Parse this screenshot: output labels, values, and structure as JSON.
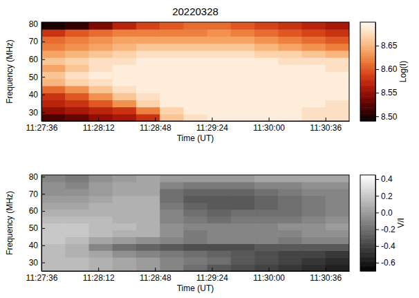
{
  "chart_data": [
    {
      "type": "heatmap",
      "title": "20220328",
      "color": "hot",
      "x_label": "Time (UT)",
      "y_label": "Frequency (MHz)",
      "xlim": [
        "11:27:36",
        "11:30:51"
      ],
      "ylim": [
        25,
        81
      ],
      "xticks": [
        "11:27:36",
        "11:28:12",
        "11:28:48",
        "11:29:24",
        "11:30:00",
        "11:30:36"
      ],
      "yticks": [
        30,
        40,
        50,
        60,
        70,
        80
      ],
      "x_bins": [
        "11:27:36",
        "11:27:51",
        "11:28:06",
        "11:28:21",
        "11:28:36",
        "11:28:51",
        "11:29:06",
        "11:29:21",
        "11:29:36",
        "11:29:51",
        "11:30:06",
        "11:30:21",
        "11:30:36",
        "11:30:51"
      ],
      "y_bins": [
        25,
        29,
        33,
        37,
        41,
        45,
        49,
        53,
        57,
        61,
        65,
        69,
        73,
        77,
        81
      ],
      "cells": [
        [
          8.52,
          8.53,
          8.55,
          8.56,
          8.58,
          8.66,
          8.68,
          8.69,
          8.69,
          8.69,
          8.69,
          8.68,
          8.68
        ],
        [
          8.55,
          8.56,
          8.57,
          8.58,
          8.62,
          8.67,
          8.69,
          8.69,
          8.69,
          8.69,
          8.69,
          8.68,
          8.68
        ],
        [
          8.57,
          8.58,
          8.6,
          8.63,
          8.67,
          8.69,
          8.69,
          8.69,
          8.69,
          8.69,
          8.69,
          8.69,
          8.68
        ],
        [
          8.58,
          8.6,
          8.63,
          8.66,
          8.68,
          8.69,
          8.69,
          8.69,
          8.69,
          8.69,
          8.69,
          8.69,
          8.69
        ],
        [
          8.61,
          8.63,
          8.66,
          8.68,
          8.69,
          8.69,
          8.69,
          8.69,
          8.69,
          8.69,
          8.69,
          8.69,
          8.69
        ],
        [
          8.65,
          8.67,
          8.68,
          8.69,
          8.69,
          8.69,
          8.69,
          8.69,
          8.69,
          8.69,
          8.69,
          8.69,
          8.69
        ],
        [
          8.66,
          8.68,
          8.69,
          8.69,
          8.69,
          8.69,
          8.69,
          8.69,
          8.69,
          8.69,
          8.69,
          8.69,
          8.69
        ],
        [
          8.64,
          8.66,
          8.68,
          8.69,
          8.69,
          8.69,
          8.69,
          8.69,
          8.69,
          8.69,
          8.69,
          8.69,
          8.68
        ],
        [
          8.66,
          8.67,
          8.68,
          8.68,
          8.69,
          8.69,
          8.69,
          8.69,
          8.69,
          8.69,
          8.68,
          8.68,
          8.68
        ],
        [
          8.64,
          8.65,
          8.66,
          8.67,
          8.68,
          8.68,
          8.68,
          8.68,
          8.68,
          8.67,
          8.67,
          8.66,
          8.65
        ],
        [
          8.62,
          8.63,
          8.64,
          8.65,
          8.66,
          8.66,
          8.66,
          8.66,
          8.66,
          8.65,
          8.64,
          8.63,
          8.62
        ],
        [
          8.61,
          8.62,
          8.63,
          8.64,
          8.64,
          8.64,
          8.64,
          8.64,
          8.64,
          8.63,
          8.62,
          8.61,
          8.6
        ],
        [
          8.58,
          8.6,
          8.61,
          8.62,
          8.62,
          8.62,
          8.62,
          8.63,
          8.62,
          8.61,
          8.6,
          8.59,
          8.58
        ],
        [
          8.5,
          8.51,
          8.54,
          8.57,
          8.59,
          8.6,
          8.61,
          8.61,
          8.6,
          8.59,
          8.58,
          8.57,
          8.56
        ]
      ],
      "colorbar_label": "Log(I)",
      "colorbar_range": [
        8.49,
        8.7
      ],
      "colorbar_ticks": [
        {
          "value": 8.5,
          "label": "8.50"
        },
        8.55,
        {
          "value": 8.6,
          "label": "8.60"
        },
        8.65
      ]
    },
    {
      "type": "heatmap",
      "color": "gray",
      "x_label": "Time (UT)",
      "y_label": "Frequency (MHz)",
      "xlim": [
        "11:27:36",
        "11:30:51"
      ],
      "ylim": [
        25,
        81
      ],
      "xticks": [
        "11:27:36",
        "11:28:12",
        "11:28:48",
        "11:29:24",
        "11:30:00",
        "11:30:36"
      ],
      "yticks": [
        30,
        40,
        50,
        60,
        70,
        80
      ],
      "x_bins": [
        "11:27:36",
        "11:27:51",
        "11:28:06",
        "11:28:21",
        "11:28:36",
        "11:28:51",
        "11:29:06",
        "11:29:21",
        "11:29:36",
        "11:29:51",
        "11:30:06",
        "11:30:21",
        "11:30:36",
        "11:30:51"
      ],
      "y_bins": [
        25,
        29,
        33,
        37,
        41,
        45,
        49,
        53,
        57,
        61,
        65,
        69,
        73,
        77,
        81
      ],
      "cells": [
        [
          0.15,
          0.15,
          0.1,
          0.05,
          0.0,
          -0.1,
          -0.2,
          -0.3,
          -0.35,
          -0.4,
          -0.45,
          -0.5,
          -0.55
        ],
        [
          0.15,
          0.15,
          0.1,
          0.05,
          0.0,
          -0.1,
          -0.15,
          -0.2,
          -0.3,
          -0.35,
          -0.4,
          -0.45,
          -0.5
        ],
        [
          0.15,
          0.1,
          0.05,
          -0.05,
          -0.1,
          -0.15,
          -0.2,
          -0.25,
          -0.3,
          -0.35,
          -0.4,
          -0.4,
          -0.45
        ],
        [
          0.15,
          0.1,
          -0.1,
          -0.2,
          -0.25,
          -0.3,
          -0.35,
          -0.35,
          -0.35,
          -0.3,
          -0.3,
          -0.3,
          -0.3
        ],
        [
          0.2,
          0.15,
          0.05,
          0.0,
          -0.05,
          -0.1,
          -0.15,
          -0.1,
          -0.1,
          -0.1,
          -0.15,
          -0.1,
          -0.1
        ],
        [
          0.2,
          0.2,
          0.15,
          0.1,
          0.1,
          -0.05,
          -0.15,
          -0.1,
          -0.1,
          -0.1,
          -0.1,
          -0.05,
          -0.05
        ],
        [
          0.2,
          0.2,
          0.15,
          0.15,
          0.1,
          -0.05,
          -0.1,
          -0.1,
          -0.1,
          -0.1,
          -0.05,
          -0.05,
          0.0
        ],
        [
          0.15,
          0.15,
          0.15,
          0.1,
          0.1,
          -0.1,
          -0.15,
          -0.2,
          -0.15,
          -0.15,
          -0.15,
          -0.1,
          -0.05
        ],
        [
          0.1,
          0.1,
          0.1,
          0.1,
          0.1,
          -0.1,
          -0.2,
          -0.25,
          -0.2,
          -0.2,
          -0.2,
          -0.15,
          -0.1
        ],
        [
          0.05,
          0.05,
          0.1,
          0.1,
          0.1,
          -0.15,
          -0.25,
          -0.3,
          -0.3,
          -0.25,
          -0.2,
          -0.15,
          -0.1
        ],
        [
          0.0,
          0.0,
          0.05,
          0.1,
          0.1,
          -0.2,
          -0.3,
          -0.3,
          -0.3,
          -0.25,
          -0.2,
          -0.15,
          -0.1
        ],
        [
          -0.05,
          -0.05,
          0.0,
          0.05,
          0.05,
          -0.2,
          -0.25,
          -0.25,
          -0.25,
          -0.2,
          -0.15,
          -0.1,
          -0.1
        ],
        [
          -0.05,
          -0.1,
          0.0,
          0.05,
          0.05,
          -0.1,
          -0.15,
          -0.15,
          -0.15,
          -0.1,
          -0.1,
          -0.05,
          -0.05
        ],
        [
          -0.1,
          -0.15,
          -0.05,
          0.0,
          0.05,
          0.0,
          0.0,
          0.0,
          0.0,
          0.05,
          0.05,
          0.05,
          0.05
        ]
      ],
      "colorbar_label": "V/I",
      "colorbar_range": [
        -0.7,
        0.45
      ],
      "colorbar_ticks": [
        -0.6,
        -0.4,
        -0.2,
        {
          "value": 0,
          "label": "0.0"
        },
        0.2,
        0.4
      ]
    }
  ]
}
